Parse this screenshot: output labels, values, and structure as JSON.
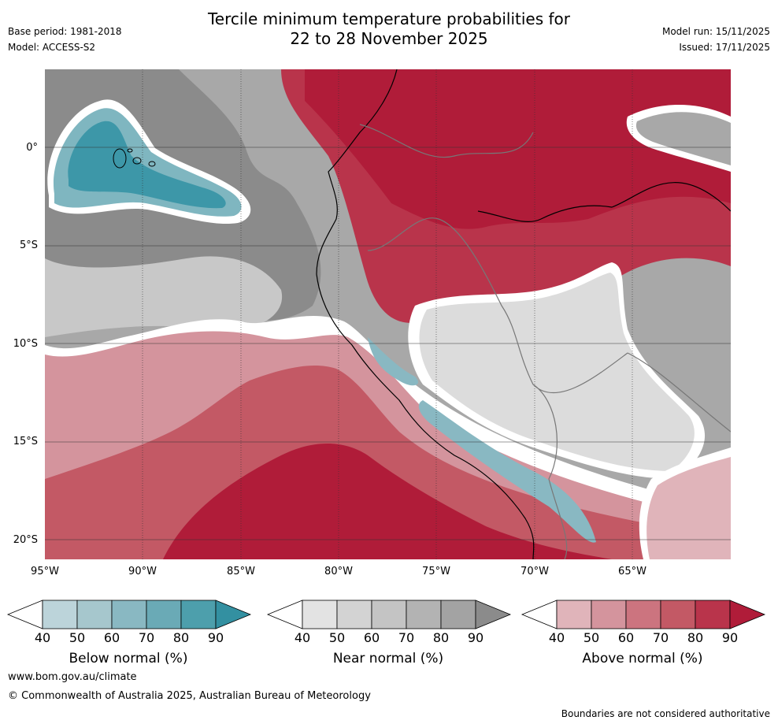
{
  "title": {
    "line1": "Tercile minimum temperature probabilities for",
    "line2": "22 to 28 November 2025"
  },
  "meta": {
    "base_period": "Base period: 1981-2018",
    "model": "Model: ACCESS-S2",
    "model_run": "Model run: 15/11/2025",
    "issued": "Issued: 17/11/2025"
  },
  "map": {
    "lat_labels": [
      "0°",
      "5°S",
      "10°S",
      "15°S",
      "20°S"
    ],
    "lon_labels": [
      "95°W",
      "90°W",
      "85°W",
      "80°W",
      "75°W",
      "70°W",
      "65°W"
    ]
  },
  "colorbars": [
    {
      "title": "Below normal (%)",
      "ticks": [
        "40",
        "50",
        "60",
        "70",
        "80",
        "90"
      ],
      "colors": [
        "#bcd4da",
        "#a6c7cd",
        "#89b8c2",
        "#6aaab6",
        "#4d9fac",
        "#3390a1"
      ]
    },
    {
      "title": "Near normal (%)",
      "ticks": [
        "40",
        "50",
        "60",
        "70",
        "80",
        "90"
      ],
      "colors": [
        "#e3e3e3",
        "#d3d3d3",
        "#c4c4c4",
        "#b3b3b3",
        "#a3a3a3",
        "#8b8b8b"
      ]
    },
    {
      "title": "Above normal (%)",
      "ticks": [
        "40",
        "50",
        "60",
        "70",
        "80",
        "90"
      ],
      "colors": [
        "#e0b4ba",
        "#d4949d",
        "#cc747f",
        "#c35965",
        "#b9344b",
        "#b01c39"
      ]
    }
  ],
  "footer": {
    "url": "www.bom.gov.au/climate",
    "copyright": "© Commonwealth of Australia 2025, Australian Bureau of Meteorology",
    "disclaimer": "Boundaries are not considered authoritative"
  }
}
